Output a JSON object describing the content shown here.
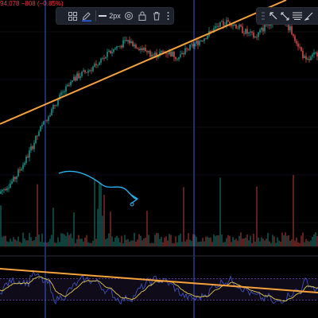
{
  "price_readout": "94,078 −808 (−0.85%)",
  "drawing_toolbar": {
    "line_width_label": "2px",
    "icons": [
      "template-grid-icon",
      "pencil-color-icon",
      "line-width-icon",
      "settings-icon",
      "lock-icon",
      "trash-icon",
      "more-icon"
    ],
    "pencil_accent_color": "#2962ff"
  },
  "secondary_toolbar": {
    "icons": [
      "grip-icon",
      "cursor-pointer-icon",
      "ruler-icon",
      "text-lines-icon",
      "brush-icon"
    ]
  },
  "colors": {
    "background": "#000000",
    "candle_up": "#26a69a",
    "candle_down": "#ef5350",
    "trendline": "#f7a23b",
    "vertical_line": "#3b5bd6",
    "hand_drawn_arrow": "#29b6f6",
    "oscillator_fast": "#3f51b5",
    "oscillator_slow": "#e6c84a",
    "oscillator_band": "#7e57c2"
  },
  "chart_data": {
    "type": "candlestick",
    "title": "",
    "price_trend": {
      "description_points": [
        [
          0,
          0.02
        ],
        [
          8,
          0.08
        ],
        [
          16,
          0.2
        ],
        [
          24,
          0.35
        ],
        [
          32,
          0.48
        ],
        [
          40,
          0.58
        ],
        [
          48,
          0.66
        ],
        [
          56,
          0.7
        ],
        [
          64,
          0.76
        ],
        [
          72,
          0.82
        ],
        [
          80,
          0.86
        ],
        [
          88,
          0.82
        ],
        [
          96,
          0.78
        ],
        [
          104,
          0.8
        ],
        [
          112,
          0.77
        ],
        [
          120,
          0.83
        ],
        [
          128,
          0.88
        ],
        [
          136,
          0.94
        ],
        [
          144,
          0.97
        ],
        [
          152,
          0.92
        ],
        [
          160,
          0.88
        ],
        [
          168,
          0.96
        ],
        [
          176,
          1.0
        ],
        [
          184,
          0.9
        ],
        [
          192,
          0.74
        ],
        [
          200,
          0.8
        ]
      ]
    },
    "volume_profile": "spikes at ~20%, 30%, 60% of range",
    "oscillator": {
      "range": [
        0,
        100
      ],
      "bands": [
        30,
        70
      ]
    }
  }
}
